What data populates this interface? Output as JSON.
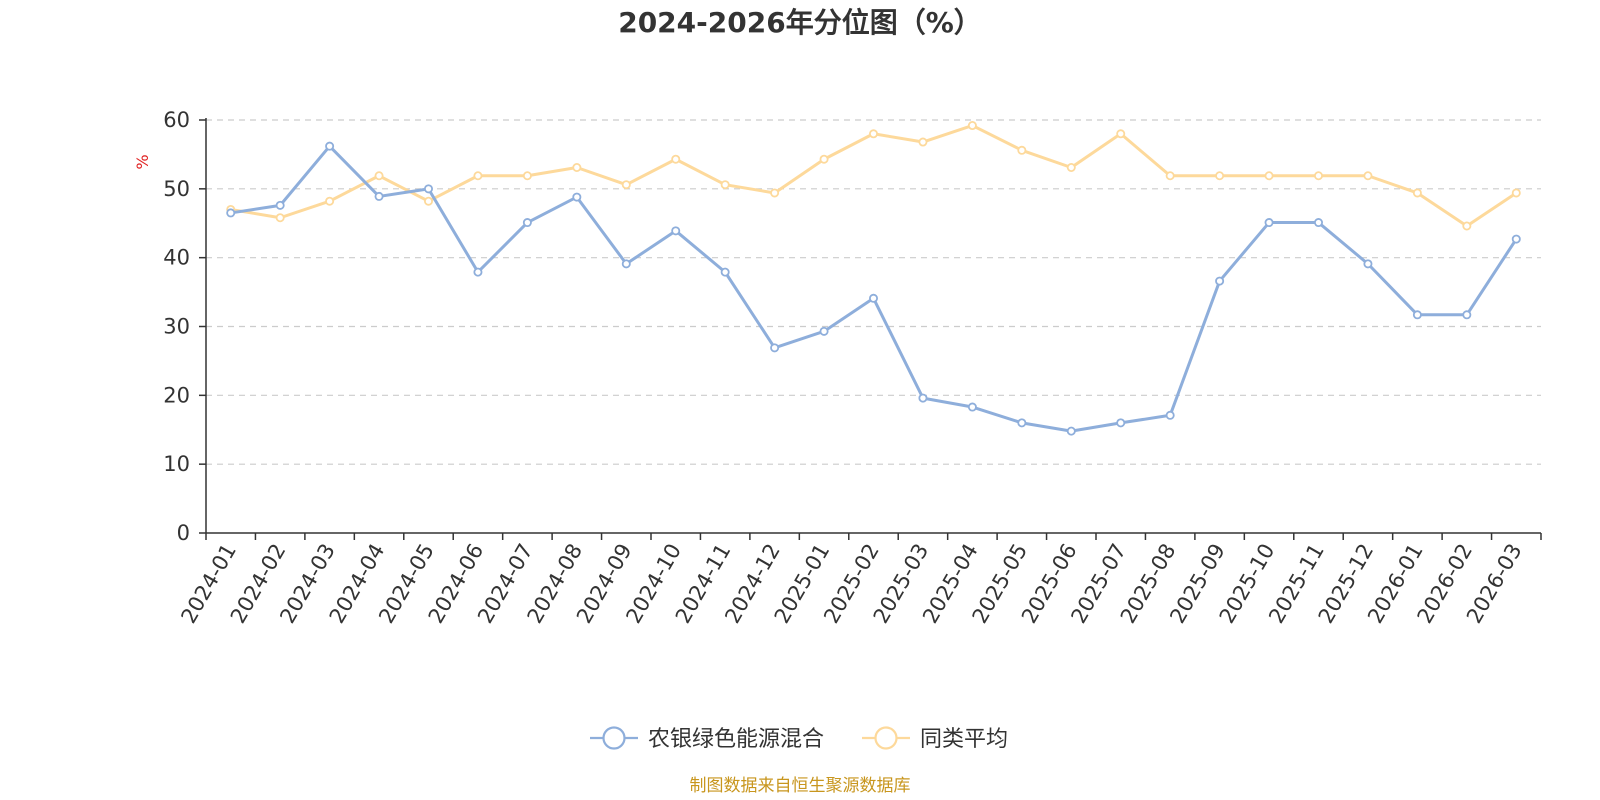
{
  "chart_data": {
    "type": "line",
    "title": "2024-2026年分位图（%）",
    "ylabel": "%",
    "ylim": [
      0,
      60
    ],
    "yticks": [
      0,
      10,
      20,
      30,
      40,
      50,
      60
    ],
    "grid": true,
    "legend_position": "bottom",
    "categories": [
      "2024-01",
      "2024-02",
      "2024-03",
      "2024-04",
      "2024-05",
      "2024-06",
      "2024-07",
      "2024-08",
      "2024-09",
      "2024-10",
      "2024-11",
      "2024-12",
      "2025-01",
      "2025-02",
      "2025-03",
      "2025-04",
      "2025-05",
      "2025-06",
      "2025-07",
      "2025-08",
      "2025-09",
      "2025-10",
      "2025-11",
      "2025-12",
      "2026-01",
      "2026-02",
      "2026-03"
    ],
    "series": [
      {
        "name": "农银绿色能源混合",
        "color": "#8eaedb",
        "values": [
          46.5,
          47.6,
          56.2,
          48.9,
          50.0,
          37.9,
          45.1,
          48.8,
          39.1,
          43.9,
          37.9,
          26.9,
          29.3,
          34.1,
          19.6,
          18.3,
          16.0,
          14.8,
          16.0,
          17.1,
          36.6,
          45.1,
          45.1,
          39.1,
          31.7,
          31.7,
          42.7
        ]
      },
      {
        "name": "同类平均",
        "color": "#fdd99b",
        "values": [
          47.0,
          45.8,
          48.2,
          51.9,
          48.2,
          51.9,
          51.9,
          53.1,
          50.6,
          54.3,
          50.6,
          49.4,
          54.3,
          58.0,
          56.8,
          59.2,
          55.6,
          53.1,
          58.0,
          51.9,
          51.9,
          51.9,
          51.9,
          51.9,
          49.4,
          44.6,
          49.4
        ]
      }
    ],
    "source_note": "制图数据来自恒生聚源数据库",
    "source_color": "#c8961e",
    "ylabel_color": "#e02020"
  }
}
